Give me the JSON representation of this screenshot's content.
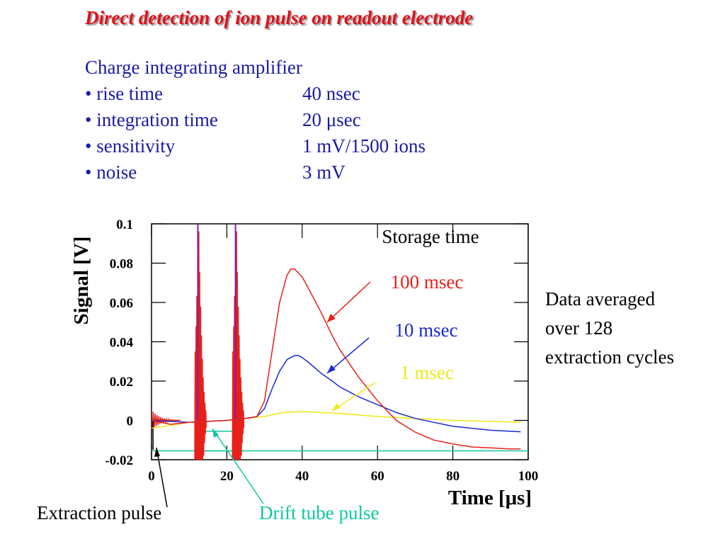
{
  "title": "Direct detection of ion pulse on readout electrode",
  "amplifier": {
    "heading": "Charge integrating amplifier",
    "specs": [
      {
        "label": "• rise time",
        "value": "40 nsec"
      },
      {
        "label": "• integration time",
        "value": "20 μsec"
      },
      {
        "label": "• sensitivity",
        "value": "1 mV/1500 ions"
      },
      {
        "label": "• noise",
        "value": "3 mV"
      }
    ]
  },
  "note": [
    "Data averaged",
    "over 128",
    "extraction cycles"
  ],
  "colors": {
    "title": "#e0101a",
    "text_blue": "#1a1aa6",
    "series_100ms": "#e8201a",
    "series_10ms": "#1a2ad0",
    "series_1ms": "#f0e818",
    "drift_tube": "#10c8a0",
    "spike_purple": "#8020a0"
  },
  "chart_data": {
    "type": "line",
    "xlabel": "Time [μs]",
    "ylabel": "Signal [V]",
    "xlim": [
      0,
      100
    ],
    "ylim": [
      -0.02,
      0.1
    ],
    "xticks": [
      "0",
      "20",
      "40",
      "60",
      "80",
      "100"
    ],
    "yticks": [
      "0.1",
      "0.08",
      "0.06",
      "0.04",
      "0.02",
      "0",
      "-0.02"
    ],
    "legend_title": "Storage time",
    "series": [
      {
        "name": "100 msec",
        "color": "#e8201a",
        "x": [
          0,
          5,
          10,
          15,
          20,
          25,
          28,
          30,
          32,
          34,
          36,
          37,
          38,
          40,
          42,
          45,
          48,
          50,
          55,
          60,
          65,
          70,
          75,
          80,
          85,
          90,
          95,
          98
        ],
        "y": [
          0.0,
          -0.002,
          -0.001,
          -0.0005,
          0.0,
          0.001,
          0.002,
          0.01,
          0.035,
          0.06,
          0.074,
          0.077,
          0.077,
          0.073,
          0.066,
          0.055,
          0.043,
          0.036,
          0.022,
          0.01,
          0.0,
          -0.006,
          -0.01,
          -0.012,
          -0.0135,
          -0.014,
          -0.0145,
          -0.0145
        ]
      },
      {
        "name": "10 msec",
        "color": "#1a2ad0",
        "x": [
          0,
          10,
          20,
          25,
          28,
          30,
          32,
          34,
          36,
          38,
          39,
          40,
          42,
          45,
          48,
          50,
          55,
          60,
          65,
          70,
          75,
          80,
          85,
          90,
          95,
          98
        ],
        "y": [
          0.0,
          -0.001,
          0.0,
          0.001,
          0.002,
          0.006,
          0.016,
          0.025,
          0.031,
          0.033,
          0.033,
          0.032,
          0.029,
          0.024,
          0.02,
          0.017,
          0.012,
          0.008,
          0.004,
          0.001,
          -0.001,
          -0.003,
          -0.004,
          -0.005,
          -0.0055,
          -0.0058
        ]
      },
      {
        "name": "1 msec",
        "color": "#f0e818",
        "x": [
          0,
          10,
          20,
          25,
          30,
          35,
          40,
          45,
          50,
          60,
          70,
          80,
          90,
          98
        ],
        "y": [
          -0.004,
          -0.001,
          0.0,
          0.001,
          0.002,
          0.004,
          0.0045,
          0.004,
          0.0035,
          0.002,
          0.001,
          0.0,
          -0.0005,
          -0.001
        ]
      }
    ],
    "annotations": [
      "Extraction pulse",
      "Drift tube pulse"
    ]
  }
}
